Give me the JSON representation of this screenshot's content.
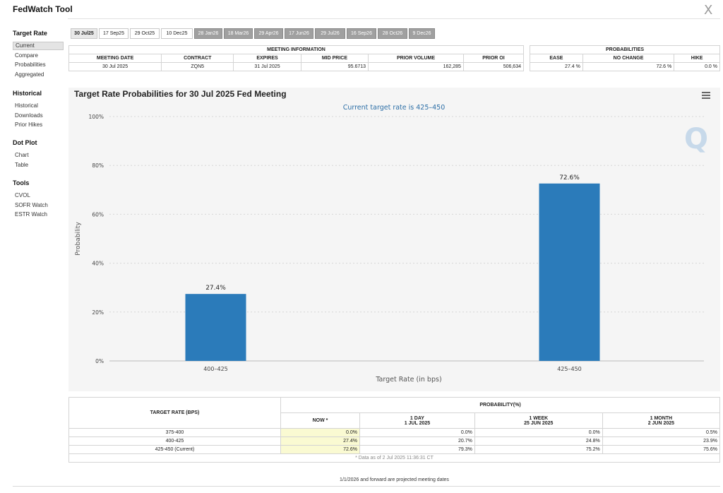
{
  "app": {
    "title": "FedWatch Tool",
    "close_icon": "X"
  },
  "sidebar": {
    "sections": [
      {
        "title": "Target Rate",
        "items": [
          "Current",
          "Compare",
          "Probabilities",
          "Aggregated"
        ]
      },
      {
        "title": "Historical",
        "items": [
          "Historical",
          "Downloads",
          "Prior Hikes"
        ]
      },
      {
        "title": "Dot Plot",
        "items": [
          "Chart",
          "Table"
        ]
      },
      {
        "title": "Tools",
        "items": [
          "CVOL",
          "SOFR Watch",
          "ESTR Watch"
        ]
      }
    ],
    "active_item": "Current"
  },
  "tabs": [
    {
      "label": "30 Jul25",
      "state": "selected"
    },
    {
      "label": "17 Sep25",
      "state": "normal"
    },
    {
      "label": "29 Oct25",
      "state": "normal"
    },
    {
      "label": "10 Dec25",
      "state": "normal"
    },
    {
      "label": "28 Jan26",
      "state": "future"
    },
    {
      "label": "18 Mar26",
      "state": "future"
    },
    {
      "label": "29 Apr26",
      "state": "future"
    },
    {
      "label": "17 Jun26",
      "state": "future"
    },
    {
      "label": "29 Jul26",
      "state": "future"
    },
    {
      "label": "16 Sep26",
      "state": "future"
    },
    {
      "label": "28 Oct26",
      "state": "future"
    },
    {
      "label": "9 Dec26",
      "state": "future"
    }
  ],
  "meeting_info": {
    "group_header": "MEETING INFORMATION",
    "headers": [
      "MEETING DATE",
      "CONTRACT",
      "EXPIRES",
      "MID PRICE",
      "PRIOR VOLUME",
      "PRIOR OI"
    ],
    "row": [
      "30 Jul 2025",
      "ZQN5",
      "31 Jul 2025",
      "95.6713",
      "162,285",
      "506,634"
    ]
  },
  "probabilities_summary": {
    "group_header": "PROBABILITIES",
    "headers": [
      "EASE",
      "NO CHANGE",
      "HIKE"
    ],
    "row": [
      "27.4 %",
      "72.6 %",
      "0.0 %"
    ]
  },
  "chart_data": {
    "type": "bar",
    "title": "Target Rate Probabilities for 30 Jul 2025 Fed Meeting",
    "subtitle": "Current target rate is 425–450",
    "categories": [
      "400–425",
      "425–450"
    ],
    "values": [
      27.4,
      72.6
    ],
    "data_labels": [
      "27.4%",
      "72.6%"
    ],
    "xlabel": "Target Rate (in bps)",
    "ylabel": "Probability",
    "ylim": [
      0,
      100
    ],
    "yticks": [
      "0%",
      "20%",
      "40%",
      "60%",
      "80%",
      "100%"
    ],
    "bar_color": "#2b7bba",
    "grid": true
  },
  "bottom_table": {
    "rate_header": "TARGET RATE (BPS)",
    "prob_header": "PROBABILITY(%)",
    "columns": [
      {
        "label": "NOW *",
        "sub": ""
      },
      {
        "label": "1 DAY",
        "sub": "1 JUL 2025"
      },
      {
        "label": "1 WEEK",
        "sub": "25 JUN 2025"
      },
      {
        "label": "1 MONTH",
        "sub": "2 JUN 2025"
      }
    ],
    "rows": [
      {
        "rate": "375-400",
        "values": [
          "0.0%",
          "0.0%",
          "0.0%",
          "0.5%"
        ]
      },
      {
        "rate": "400-425",
        "values": [
          "27.4%",
          "20.7%",
          "24.8%",
          "23.9%"
        ]
      },
      {
        "rate": "425-450 (Current)",
        "values": [
          "72.6%",
          "79.3%",
          "75.2%",
          "75.6%"
        ]
      }
    ],
    "data_note": "* Data as of 2 Jul 2025 11:36:31 CT"
  },
  "footer_note": "1/1/2026 and forward are projected meeting dates"
}
